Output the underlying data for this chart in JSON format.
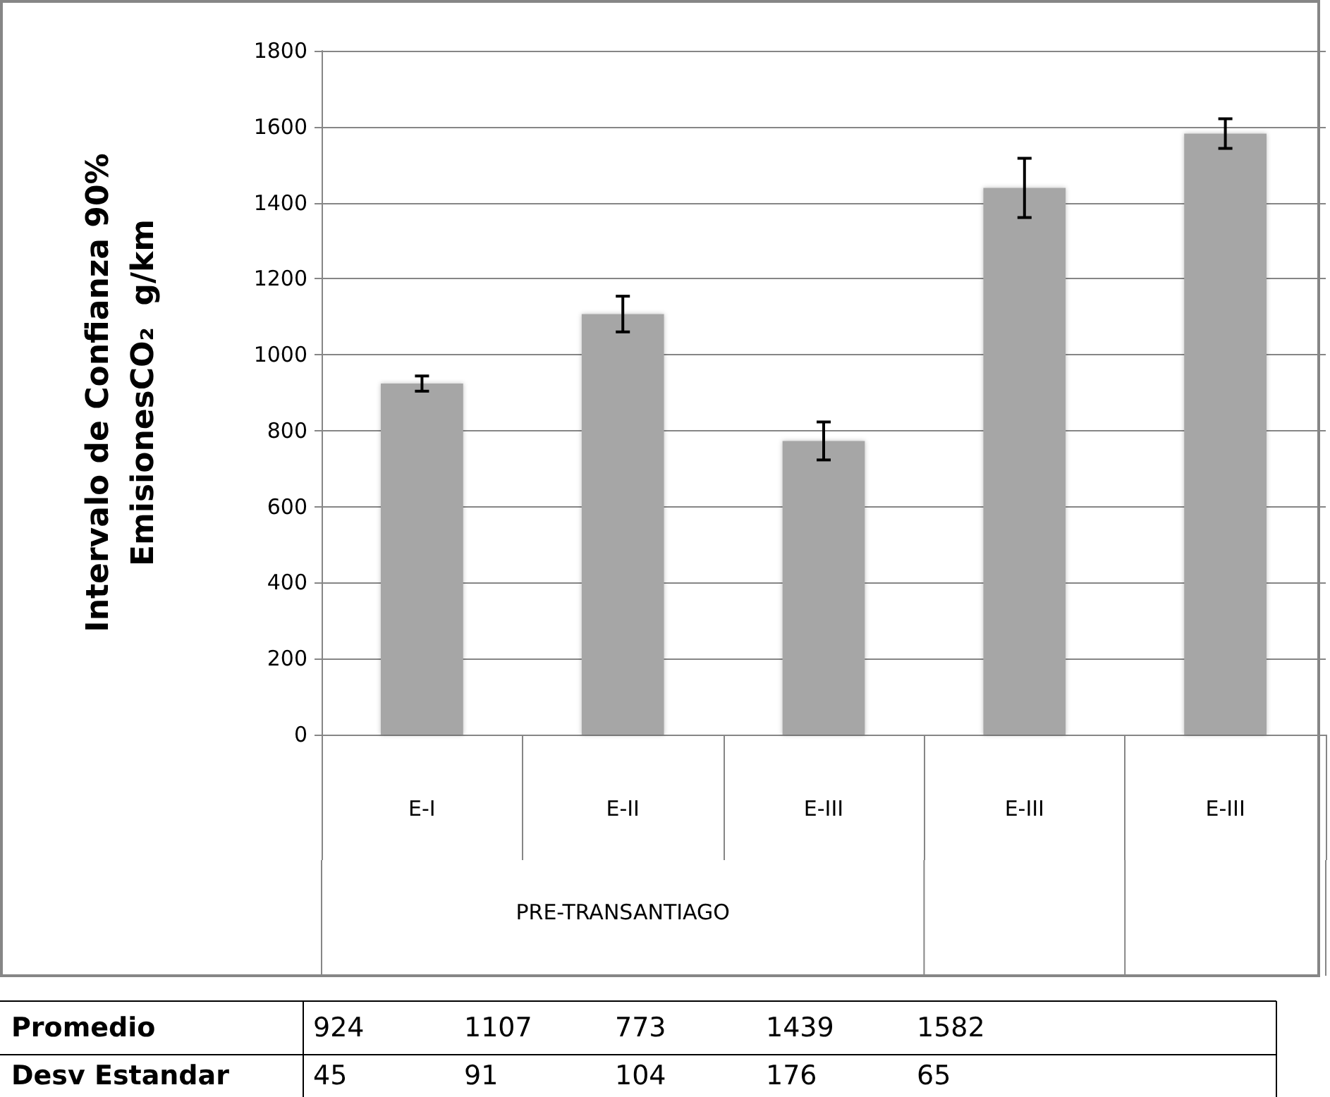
{
  "chart_data": {
    "type": "bar",
    "ylabel": "Intervalo de Confianza 90%\nEmisionesCO₂  g/km",
    "categories": [
      "E-I",
      "E-II",
      "E-III",
      "E-III",
      "E-III"
    ],
    "values": [
      924,
      1107,
      773,
      1439,
      1582
    ],
    "errors": [
      20,
      47,
      50,
      78,
      39
    ],
    "color": "#a6a6a6",
    "ylim": [
      0,
      1800
    ],
    "yticks": [
      0,
      200,
      400,
      600,
      800,
      1000,
      1200,
      1400,
      1600,
      1800
    ],
    "grid": "y",
    "annotations": [
      "PRE-TRANSANTIAGO",
      "Promedio",
      "Desv Estandar",
      "924",
      "1107",
      "773",
      "1439",
      "1582",
      "45",
      "91",
      "104",
      "176",
      "65"
    ]
  }
}
